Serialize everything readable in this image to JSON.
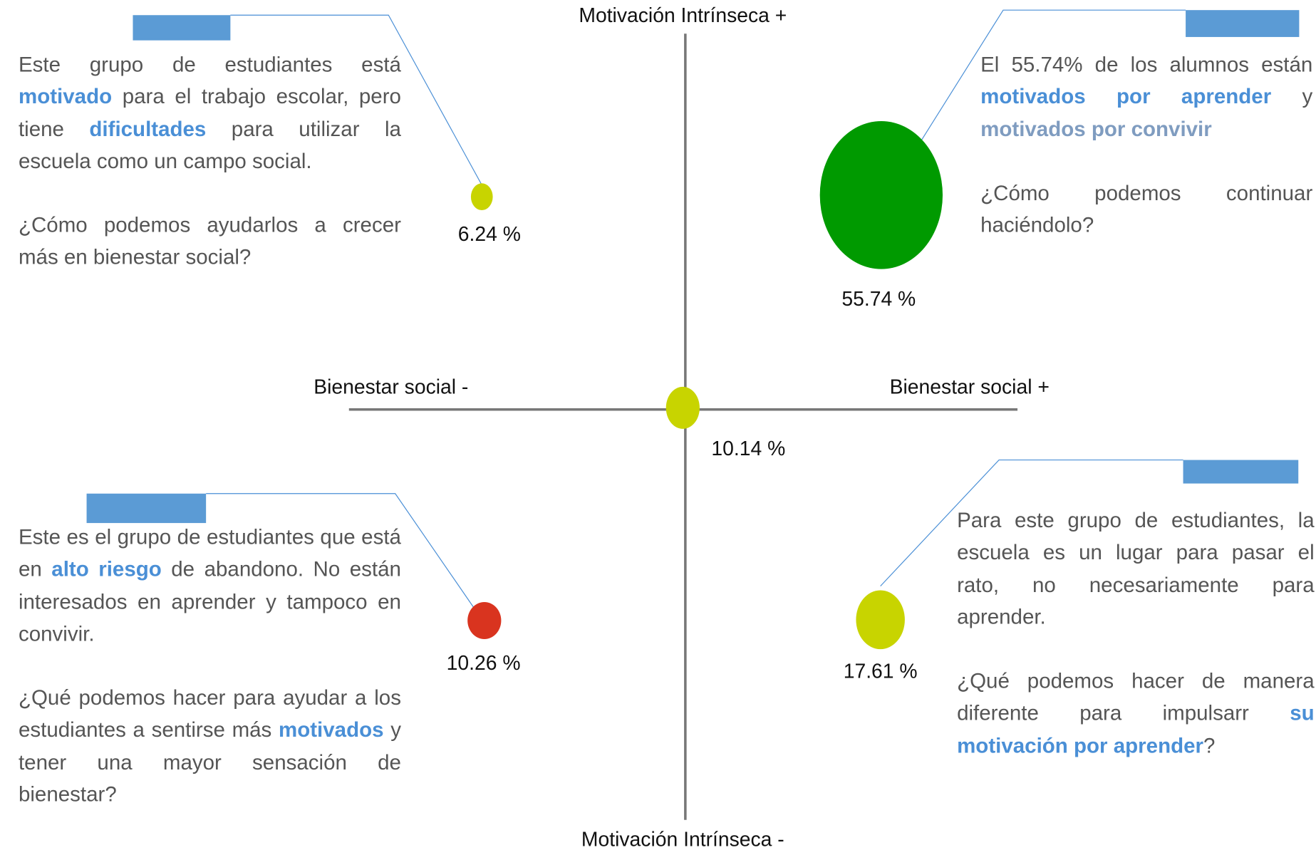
{
  "axes": {
    "top": "Motivación Intrínseca +",
    "bottom": "Motivación Intrínseca -",
    "left": "Bienestar social -",
    "right": "Bienestar social +"
  },
  "nodes": [
    {
      "label": "10.14 %"
    },
    {
      "label": "6.24 %"
    },
    {
      "label": "55.74 %"
    },
    {
      "label": "10.26 %"
    },
    {
      "label": "17.61 %"
    }
  ],
  "quadrants": [
    {
      "paragraphs": [
        [
          {
            "text": "Este grupo de estudiantes está "
          },
          {
            "text": "motivado",
            "color": "#4a8fd6"
          },
          {
            "text": " para el trabajo escolar, pero tiene "
          },
          {
            "text": "dificultades",
            "color": "#4a8fd6"
          },
          {
            "text": " para utilizar la escuela como un campo social."
          }
        ],
        [
          {
            "text": "¿Cómo podemos ayudarlos a crecer más en bienestar social?"
          }
        ]
      ]
    },
    {
      "paragraphs": [
        [
          {
            "text": "El 55.74% de los alumnos están "
          },
          {
            "text": "motivados por aprender",
            "color": "#4a8fd6"
          },
          {
            "text": " y "
          },
          {
            "text": "motivados por convivir",
            "color": "#7f9cc0"
          }
        ],
        [
          {
            "text": "¿Cómo podemos continuar haciéndolo?"
          }
        ]
      ]
    },
    {
      "paragraphs": [
        [
          {
            "text": "Este es el grupo de estudiantes que está en "
          },
          {
            "text": "alto riesgo",
            "color": "#4a8fd6"
          },
          {
            "text": " de abandono. No están interesados en aprender y tampoco en convivir."
          }
        ],
        [
          {
            "text": "¿Qué podemos hacer para ayudar a los estudiantes a sentirse más "
          },
          {
            "text": "motivados",
            "color": "#4a8fd6"
          },
          {
            "text": " y tener una mayor sensación de bienestar?"
          }
        ]
      ]
    },
    {
      "paragraphs": [
        [
          {
            "text": "Para este grupo de estudiantes, la escuela es un lugar para pasar el rato, no necesariamente para aprender."
          }
        ],
        [
          {
            "text": "¿Qué podemos hacer de manera diferente para impulsarr "
          },
          {
            "text": "su motivación por aprender",
            "color": "#4a8fd6"
          },
          {
            "text": "?"
          }
        ]
      ]
    }
  ]
}
